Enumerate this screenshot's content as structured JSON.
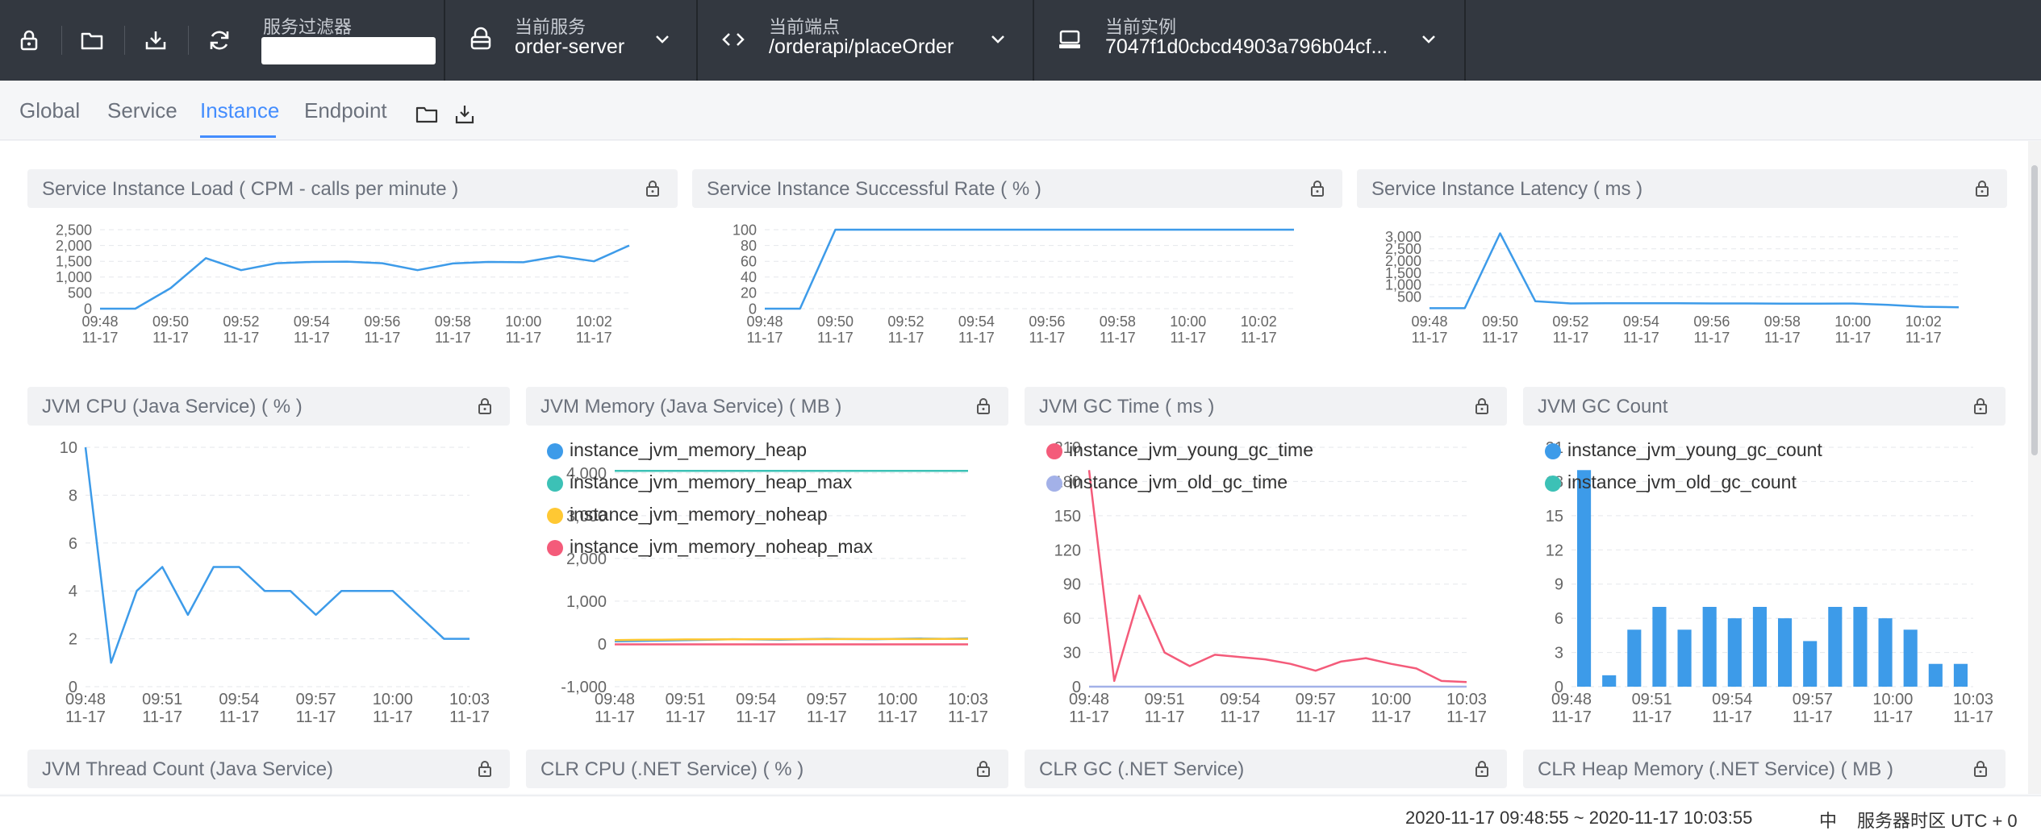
{
  "topbar": {
    "filter_label": "服务过滤器",
    "filter_value": "",
    "service_label": "当前服务",
    "service_value": "order-server",
    "endpoint_label": "当前端点",
    "endpoint_value": "/orderapi/placeOrder",
    "instance_label": "当前实例",
    "instance_value": "7047f1d0cbcd4903a796b04cf..."
  },
  "tabs": [
    {
      "label": "Global",
      "active": false
    },
    {
      "label": "Service",
      "active": false
    },
    {
      "label": "Instance",
      "active": true
    },
    {
      "label": "Endpoint",
      "active": false
    }
  ],
  "colors": {
    "accent": "#448dfe",
    "line_blue": "#3d9be9",
    "teal": "#3cc1b6",
    "yellow": "#ffc833",
    "red": "#f45b7a",
    "lavender": "#a3b1e8"
  },
  "panels": {
    "load": "Service Instance Load ( CPM - calls per minute )",
    "success": "Service Instance Successful Rate ( % )",
    "latency": "Service Instance Latency ( ms )",
    "jvm_cpu": "JVM CPU (Java Service) ( % )",
    "jvm_memory": "JVM Memory (Java Service) ( MB )",
    "jvm_gc_time": "JVM GC Time ( ms )",
    "jvm_gc_count": "JVM GC Count",
    "thread": "JVM Thread Count (Java Service)",
    "clr_cpu": "CLR CPU (.NET Service) ( % )",
    "clr_gc": "CLR GC (.NET Service)",
    "clr_heap": "CLR Heap Memory (.NET Service) ( MB )"
  },
  "chart_data": [
    {
      "id": "load",
      "type": "line",
      "x_ticks": [
        "09:48\n11-17",
        "09:50\n11-17",
        "09:52\n11-17",
        "09:54\n11-17",
        "09:56\n11-17",
        "09:58\n11-17",
        "10:00\n11-17",
        "10:02\n11-17"
      ],
      "yticks": [
        "0",
        "500",
        "1,000",
        "1,500",
        "2,000",
        "2,500"
      ],
      "ylim": [
        0,
        2500
      ],
      "series": [
        {
          "color": "#3d9be9",
          "values": [
            0,
            0,
            650,
            1600,
            1220,
            1440,
            1480,
            1490,
            1440,
            1220,
            1430,
            1480,
            1470,
            1660,
            1500,
            2000
          ]
        }
      ]
    },
    {
      "id": "success",
      "type": "line",
      "x_ticks": [
        "09:48\n11-17",
        "09:50\n11-17",
        "09:52\n11-17",
        "09:54\n11-17",
        "09:56\n11-17",
        "09:58\n11-17",
        "10:00\n11-17",
        "10:02\n11-17"
      ],
      "yticks": [
        "0",
        "20",
        "40",
        "60",
        "80",
        "100"
      ],
      "ylim": [
        0,
        100
      ],
      "series": [
        {
          "color": "#3d9be9",
          "values": [
            0,
            0,
            100,
            100,
            100,
            100,
            100,
            100,
            100,
            100,
            100,
            100,
            100,
            100,
            100,
            100
          ]
        }
      ]
    },
    {
      "id": "latency",
      "type": "line",
      "x_ticks": [
        "09:48\n11-17",
        "09:50\n11-17",
        "09:52\n11-17",
        "09:54\n11-17",
        "09:56\n11-17",
        "09:58\n11-17",
        "10:00\n11-17",
        "10:02\n11-17"
      ],
      "yticks": [
        "500",
        "1,000",
        "1,500",
        "2,000",
        "2,500",
        "3,000"
      ],
      "ylim": [
        0,
        3300
      ],
      "series": [
        {
          "color": "#3d9be9",
          "values": [
            20,
            20,
            3150,
            310,
            220,
            230,
            230,
            225,
            220,
            220,
            210,
            210,
            215,
            160,
            80,
            60
          ]
        }
      ]
    },
    {
      "id": "jvm_cpu",
      "type": "line",
      "x_ticks": [
        "09:48\n11-17",
        "09:51\n11-17",
        "09:54\n11-17",
        "09:57\n11-17",
        "10:00\n11-17",
        "10:03\n11-17"
      ],
      "yticks": [
        "0",
        "2",
        "4",
        "6",
        "8",
        "10"
      ],
      "ylim": [
        0,
        10
      ],
      "series": [
        {
          "color": "#3d9be9",
          "values": [
            10,
            1,
            4,
            5,
            3,
            5,
            5,
            4,
            4,
            3,
            4,
            4,
            4,
            3,
            2,
            2
          ]
        }
      ]
    },
    {
      "id": "jvm_memory",
      "type": "line",
      "x_ticks": [
        "09:48\n11-17",
        "09:51\n11-17",
        "09:54\n11-17",
        "09:57\n11-17",
        "10:00\n11-17",
        "10:03\n11-17"
      ],
      "yticks": [
        "-1,000",
        "0",
        "1,000",
        "2,000",
        "3,000",
        "4,000"
      ],
      "ylim": [
        -1000,
        4600
      ],
      "series": [
        {
          "name": "instance_jvm_memory_heap",
          "color": "#3d9be9",
          "values": [
            60,
            70,
            80,
            90,
            100,
            110,
            105,
            100,
            110,
            120,
            115,
            110,
            120,
            125,
            120,
            130
          ]
        },
        {
          "name": "instance_jvm_memory_heap_max",
          "color": "#3cc1b6",
          "values": [
            4050,
            4050,
            4050,
            4050,
            4050,
            4050,
            4050,
            4050,
            4050,
            4050,
            4050,
            4050,
            4050,
            4050,
            4050,
            4050
          ]
        },
        {
          "name": "instance_jvm_memory_noheap",
          "color": "#ffc833",
          "values": [
            90,
            95,
            100,
            105,
            105,
            108,
            110,
            110,
            112,
            112,
            114,
            114,
            115,
            115,
            116,
            116
          ]
        },
        {
          "name": "instance_jvm_memory_noheap_max",
          "color": "#f45b7a",
          "values": [
            -10,
            -10,
            -10,
            -10,
            -10,
            -10,
            -10,
            -10,
            -10,
            -10,
            -10,
            -10,
            -10,
            -10,
            -10,
            -10
          ]
        }
      ]
    },
    {
      "id": "jvm_gc_time",
      "type": "line",
      "x_ticks": [
        "09:48\n11-17",
        "09:51\n11-17",
        "09:54\n11-17",
        "09:57\n11-17",
        "10:00\n11-17",
        "10:03\n11-17"
      ],
      "yticks": [
        "0",
        "30",
        "60",
        "90",
        "120",
        "150",
        "180",
        "210"
      ],
      "ylim": [
        0,
        210
      ],
      "series": [
        {
          "name": "instance_jvm_young_gc_time",
          "color": "#f45b7a",
          "values": [
            190,
            5,
            80,
            30,
            18,
            28,
            26,
            24,
            20,
            14,
            22,
            25,
            20,
            16,
            5,
            4
          ]
        },
        {
          "name": "instance_jvm_old_gc_time",
          "color": "#a3b1e8",
          "values": [
            0,
            0,
            0,
            0,
            0,
            0,
            0,
            0,
            0,
            0,
            0,
            0,
            0,
            0,
            0,
            0
          ]
        }
      ]
    },
    {
      "id": "jvm_gc_count",
      "type": "bar",
      "x_ticks": [
        "09:48\n11-17",
        "09:51\n11-17",
        "09:54\n11-17",
        "09:57\n11-17",
        "10:00\n11-17",
        "10:03\n11-17"
      ],
      "yticks": [
        "0",
        "3",
        "6",
        "9",
        "12",
        "15",
        "18",
        "21"
      ],
      "ylim": [
        0,
        21
      ],
      "series": [
        {
          "name": "instance_jvm_young_gc_count",
          "color": "#3d9be9",
          "values": [
            19,
            1,
            5,
            7,
            5,
            7,
            6,
            7,
            6,
            4,
            7,
            7,
            6,
            5,
            2,
            2
          ]
        },
        {
          "name": "instance_jvm_old_gc_count",
          "color": "#3cc1b6",
          "values": [
            0,
            0,
            0,
            0,
            0,
            0,
            0,
            0,
            0,
            0,
            0,
            0,
            0,
            0,
            0,
            0
          ]
        }
      ]
    }
  ],
  "footer": {
    "range": "2020-11-17 09:48:55 ~ 2020-11-17 10:03:55",
    "lang": "中",
    "timezone": "服务器时区 UTC + 0"
  }
}
